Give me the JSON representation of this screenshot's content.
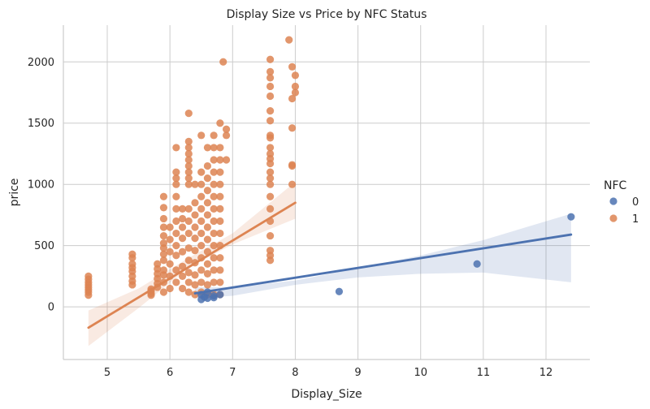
{
  "chart_data": {
    "type": "scatter",
    "title": "Display Size vs Price by NFC Status",
    "xlabel": "Display_Size",
    "ylabel": "price",
    "xlim": [
      4.3,
      12.7
    ],
    "ylim": [
      -430,
      2300
    ],
    "xticks": [
      5,
      6,
      7,
      8,
      9,
      10,
      11,
      12
    ],
    "yticks": [
      0,
      500,
      1000,
      1500,
      2000
    ],
    "grid": true,
    "legend": {
      "title": "NFC",
      "placement": "right",
      "entries": [
        "0",
        "1"
      ]
    },
    "colors": {
      "0": "#4c72b0",
      "1": "#dd8452"
    },
    "series": [
      {
        "name": "0",
        "points": [
          [
            6.5,
            60
          ],
          [
            6.55,
            80
          ],
          [
            6.6,
            70
          ],
          [
            6.7,
            90
          ],
          [
            6.8,
            100
          ],
          [
            6.5,
            100
          ],
          [
            6.6,
            120
          ],
          [
            6.7,
            75
          ],
          [
            8.7,
            125
          ],
          [
            10.9,
            350
          ],
          [
            12.4,
            735
          ]
        ],
        "regression": {
          "x": [
            6.4,
            12.4
          ],
          "y": [
            110,
            590
          ]
        },
        "ci_band": {
          "x": [
            6.4,
            7.0,
            8.0,
            9.0,
            10.0,
            11.0,
            12.4
          ],
          "upper": [
            160,
            160,
            215,
            315,
            420,
            545,
            760
          ],
          "lower": [
            70,
            90,
            180,
            240,
            270,
            280,
            200
          ]
        }
      },
      {
        "name": "1",
        "points": [
          [
            4.7,
            95
          ],
          [
            4.7,
            120
          ],
          [
            4.7,
            140
          ],
          [
            4.7,
            160
          ],
          [
            4.7,
            180
          ],
          [
            4.7,
            200
          ],
          [
            4.7,
            225
          ],
          [
            4.7,
            250
          ],
          [
            5.4,
            180
          ],
          [
            5.4,
            210
          ],
          [
            5.4,
            250
          ],
          [
            5.4,
            290
          ],
          [
            5.4,
            320
          ],
          [
            5.4,
            350
          ],
          [
            5.4,
            400
          ],
          [
            5.4,
            430
          ],
          [
            5.7,
            95
          ],
          [
            5.7,
            110
          ],
          [
            5.7,
            130
          ],
          [
            5.7,
            145
          ],
          [
            5.8,
            160
          ],
          [
            5.8,
            190
          ],
          [
            5.8,
            230
          ],
          [
            5.8,
            270
          ],
          [
            5.8,
            310
          ],
          [
            5.8,
            350
          ],
          [
            5.9,
            120
          ],
          [
            5.9,
            200
          ],
          [
            5.9,
            260
          ],
          [
            5.9,
            300
          ],
          [
            5.9,
            380
          ],
          [
            5.9,
            430
          ],
          [
            5.9,
            480
          ],
          [
            5.9,
            520
          ],
          [
            5.9,
            580
          ],
          [
            5.9,
            650
          ],
          [
            5.9,
            720
          ],
          [
            5.9,
            810
          ],
          [
            5.9,
            900
          ],
          [
            6.0,
            150
          ],
          [
            6.0,
            250
          ],
          [
            6.0,
            350
          ],
          [
            6.0,
            450
          ],
          [
            6.0,
            550
          ],
          [
            6.0,
            650
          ],
          [
            6.1,
            200
          ],
          [
            6.1,
            300
          ],
          [
            6.1,
            420
          ],
          [
            6.1,
            500
          ],
          [
            6.1,
            600
          ],
          [
            6.1,
            700
          ],
          [
            6.1,
            800
          ],
          [
            6.1,
            900
          ],
          [
            6.1,
            1000
          ],
          [
            6.1,
            1050
          ],
          [
            6.1,
            1100
          ],
          [
            6.1,
            1300
          ],
          [
            6.2,
            150
          ],
          [
            6.2,
            250
          ],
          [
            6.2,
            330
          ],
          [
            6.2,
            450
          ],
          [
            6.2,
            560
          ],
          [
            6.2,
            650
          ],
          [
            6.2,
            720
          ],
          [
            6.2,
            800
          ],
          [
            6.3,
            120
          ],
          [
            6.3,
            200
          ],
          [
            6.3,
            280
          ],
          [
            6.3,
            380
          ],
          [
            6.3,
            480
          ],
          [
            6.3,
            600
          ],
          [
            6.3,
            700
          ],
          [
            6.3,
            800
          ],
          [
            6.3,
            1000
          ],
          [
            6.3,
            1050
          ],
          [
            6.3,
            1100
          ],
          [
            6.3,
            1150
          ],
          [
            6.3,
            1200
          ],
          [
            6.3,
            1250
          ],
          [
            6.3,
            1300
          ],
          [
            6.3,
            1350
          ],
          [
            6.3,
            1580
          ],
          [
            6.4,
            100
          ],
          [
            6.4,
            180
          ],
          [
            6.4,
            260
          ],
          [
            6.4,
            360
          ],
          [
            6.4,
            460
          ],
          [
            6.4,
            560
          ],
          [
            6.4,
            650
          ],
          [
            6.4,
            750
          ],
          [
            6.4,
            850
          ],
          [
            6.4,
            1000
          ],
          [
            6.5,
            120
          ],
          [
            6.5,
            200
          ],
          [
            6.5,
            300
          ],
          [
            6.5,
            400
          ],
          [
            6.5,
            500
          ],
          [
            6.5,
            600
          ],
          [
            6.5,
            700
          ],
          [
            6.5,
            800
          ],
          [
            6.5,
            900
          ],
          [
            6.5,
            1000
          ],
          [
            6.5,
            1100
          ],
          [
            6.5,
            1400
          ],
          [
            6.6,
            100
          ],
          [
            6.6,
            180
          ],
          [
            6.6,
            270
          ],
          [
            6.6,
            350
          ],
          [
            6.6,
            450
          ],
          [
            6.6,
            550
          ],
          [
            6.6,
            650
          ],
          [
            6.6,
            750
          ],
          [
            6.6,
            850
          ],
          [
            6.6,
            950
          ],
          [
            6.6,
            1050
          ],
          [
            6.6,
            1150
          ],
          [
            6.6,
            1300
          ],
          [
            6.7,
            100
          ],
          [
            6.7,
            200
          ],
          [
            6.7,
            300
          ],
          [
            6.7,
            400
          ],
          [
            6.7,
            500
          ],
          [
            6.7,
            600
          ],
          [
            6.7,
            700
          ],
          [
            6.7,
            800
          ],
          [
            6.7,
            900
          ],
          [
            6.7,
            1000
          ],
          [
            6.7,
            1100
          ],
          [
            6.7,
            1200
          ],
          [
            6.7,
            1300
          ],
          [
            6.7,
            1400
          ],
          [
            6.8,
            100
          ],
          [
            6.8,
            200
          ],
          [
            6.8,
            300
          ],
          [
            6.8,
            400
          ],
          [
            6.8,
            500
          ],
          [
            6.8,
            600
          ],
          [
            6.8,
            700
          ],
          [
            6.8,
            800
          ],
          [
            6.8,
            900
          ],
          [
            6.8,
            1000
          ],
          [
            6.8,
            1100
          ],
          [
            6.8,
            1200
          ],
          [
            6.8,
            1300
          ],
          [
            6.8,
            1500
          ],
          [
            6.85,
            2000
          ],
          [
            6.9,
            1400
          ],
          [
            6.9,
            1450
          ],
          [
            6.9,
            1200
          ],
          [
            7.6,
            380
          ],
          [
            7.6,
            420
          ],
          [
            7.6,
            460
          ],
          [
            7.6,
            580
          ],
          [
            7.6,
            700
          ],
          [
            7.6,
            800
          ],
          [
            7.6,
            900
          ],
          [
            7.6,
            1000
          ],
          [
            7.6,
            1050
          ],
          [
            7.6,
            1100
          ],
          [
            7.6,
            1170
          ],
          [
            7.6,
            1210
          ],
          [
            7.6,
            1250
          ],
          [
            7.6,
            1300
          ],
          [
            7.6,
            1380
          ],
          [
            7.6,
            1400
          ],
          [
            7.6,
            1520
          ],
          [
            7.6,
            1600
          ],
          [
            7.6,
            1720
          ],
          [
            7.6,
            1800
          ],
          [
            7.6,
            1870
          ],
          [
            7.6,
            1920
          ],
          [
            7.6,
            2020
          ],
          [
            7.9,
            2180
          ],
          [
            7.95,
            1460
          ],
          [
            7.95,
            1150
          ],
          [
            7.95,
            1000
          ],
          [
            7.95,
            1700
          ],
          [
            7.95,
            1960
          ],
          [
            8.0,
            1890
          ],
          [
            8.0,
            1750
          ],
          [
            8.0,
            1800
          ],
          [
            7.95,
            1160
          ]
        ],
        "regression": {
          "x": [
            4.7,
            8.0
          ],
          "y": [
            -170,
            850
          ]
        },
        "ci_band": {
          "x": [
            4.7,
            5.5,
            6.3,
            7.0,
            8.0
          ],
          "upper": [
            -30,
            150,
            400,
            600,
            1020
          ],
          "lower": [
            -320,
            -10,
            320,
            510,
            720
          ]
        }
      }
    ]
  }
}
